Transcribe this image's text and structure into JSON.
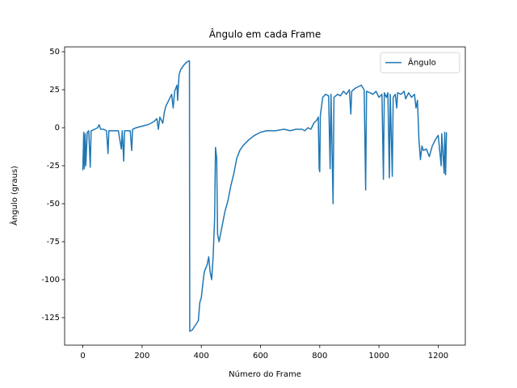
{
  "chart_data": {
    "type": "line",
    "title": "Ângulo em cada Frame",
    "x_label": "Número do Frame",
    "y_label": "Ângulo (graus)",
    "xlim": [
      -61.5,
      1291.5
    ],
    "xticks": [
      0,
      200,
      400,
      600,
      800,
      1000,
      1200
    ],
    "ylim": [
      -143.1,
      53.2
    ],
    "yticks": [
      50,
      25,
      0,
      -25,
      -50,
      -75,
      -100,
      -125
    ],
    "grid": false,
    "legend": "upper right",
    "x": [
      0,
      3,
      5,
      8,
      10,
      15,
      20,
      25,
      28,
      40,
      50,
      55,
      60,
      70,
      80,
      85,
      88,
      100,
      120,
      130,
      133,
      138,
      141,
      150,
      160,
      165,
      168,
      180,
      200,
      220,
      240,
      250,
      255,
      260,
      270,
      275,
      280,
      290,
      300,
      305,
      310,
      318,
      320,
      325,
      330,
      340,
      350,
      358,
      360,
      361,
      370,
      380,
      390,
      395,
      400,
      405,
      410,
      420,
      425,
      430,
      435,
      440,
      445,
      448,
      452,
      455,
      460,
      465,
      470,
      475,
      480,
      490,
      500,
      510,
      520,
      530,
      540,
      560,
      580,
      600,
      620,
      650,
      680,
      700,
      720,
      740,
      750,
      760,
      770,
      780,
      790,
      795,
      798,
      800,
      802,
      810,
      820,
      830,
      835,
      838,
      845,
      848,
      860,
      870,
      880,
      890,
      900,
      905,
      908,
      920,
      930,
      940,
      950,
      955,
      958,
      970,
      980,
      990,
      1000,
      1010,
      1015,
      1018,
      1025,
      1030,
      1035,
      1038,
      1045,
      1048,
      1055,
      1060,
      1063,
      1075,
      1085,
      1090,
      1100,
      1110,
      1120,
      1125,
      1130,
      1135,
      1140,
      1145,
      1150,
      1160,
      1170,
      1180,
      1190,
      1200,
      1210,
      1212,
      1220,
      1222,
      1225,
      1228
    ],
    "series": [
      {
        "name": "Ângulo",
        "color": "#1f77b4",
        "values": [
          -28,
          -3,
          -27,
          -4,
          -25,
          -3,
          -2,
          -26,
          -2,
          -1,
          0,
          2,
          -1,
          -1,
          -2,
          -17,
          -2,
          -2,
          -2,
          -14,
          -2,
          -22,
          -2,
          -2,
          -2,
          -15,
          -1,
          0,
          1,
          2,
          4,
          6,
          -1,
          7,
          3,
          10,
          14,
          18,
          22,
          13,
          24,
          28,
          18,
          35,
          38,
          41,
          43,
          44,
          44,
          -134,
          -133,
          -130,
          -127,
          -115,
          -112,
          -103,
          -95,
          -90,
          -85,
          -95,
          -100,
          -85,
          -60,
          -13,
          -20,
          -70,
          -75,
          -70,
          -65,
          -60,
          -55,
          -48,
          -38,
          -30,
          -20,
          -15,
          -12,
          -8,
          -5,
          -3,
          -2,
          -2,
          -1,
          -2,
          -1,
          -1,
          -2,
          0,
          -1,
          3,
          5,
          7,
          -27,
          -29,
          8,
          20,
          22,
          21,
          -27,
          22,
          -50,
          20,
          22,
          21,
          24,
          22,
          25,
          9,
          24,
          26,
          27,
          28,
          25,
          -41,
          24,
          23,
          22,
          24,
          20,
          22,
          -34,
          23,
          20,
          23,
          -33,
          22,
          -32,
          20,
          22,
          13,
          23,
          22,
          24,
          19,
          23,
          20,
          22,
          13,
          18,
          -8,
          -21,
          -12,
          -15,
          -14,
          -19,
          -12,
          -8,
          -5,
          -25,
          -4,
          -30,
          -3,
          -31,
          -3
        ]
      }
    ]
  }
}
